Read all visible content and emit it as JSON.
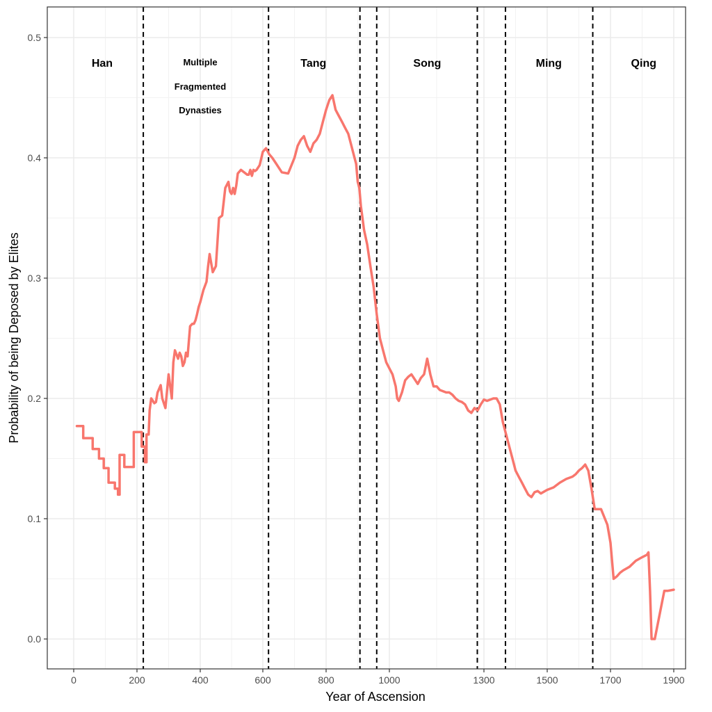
{
  "chart_data": {
    "type": "line",
    "title": "",
    "xlabel": "Year of Ascension",
    "ylabel": "Probability of being Deposed by Elites",
    "xlim": [
      -80,
      2000
    ],
    "ylim": [
      -0.025,
      0.525
    ],
    "x_ticks": [
      0,
      200,
      400,
      600,
      800,
      1000,
      1300,
      1500,
      1700,
      1900
    ],
    "x_tick_labels": [
      "0",
      "200",
      "400",
      "600",
      "800",
      "1000",
      "1300",
      "1500",
      "1700",
      "1900"
    ],
    "y_ticks": [
      0.0,
      0.1,
      0.2,
      0.3,
      0.4,
      0.5
    ],
    "y_tick_labels": [
      "0.0",
      "0.1",
      "0.2",
      "0.3",
      "0.4",
      "0.5"
    ],
    "grid": true,
    "line_color": "#F8766D",
    "divider_color": "#000000",
    "dividers": [
      220,
      618,
      907,
      960,
      1279,
      1368,
      1644
    ],
    "period_labels": [
      {
        "text": "Han",
        "x": 90,
        "y": 0.476
      },
      {
        "text": "Multiple",
        "x": 400,
        "y": 0.476
      },
      {
        "text": "Fragmented",
        "x": 400,
        "y": 0.456
      },
      {
        "text": "Dynasties",
        "x": 400,
        "y": 0.436
      },
      {
        "text": "Tang",
        "x": 760,
        "y": 0.476
      },
      {
        "text": "Song",
        "x": 1120,
        "y": 0.476
      },
      {
        "text": "Ming",
        "x": 1505,
        "y": 0.476
      },
      {
        "text": "Qing",
        "x": 1805,
        "y": 0.476
      }
    ],
    "series": [
      {
        "x": [
          10,
          30,
          30,
          60,
          60,
          80,
          80,
          95,
          95,
          110,
          110,
          130,
          130,
          140,
          140,
          145,
          145,
          160,
          160,
          190,
          190,
          215,
          215,
          225,
          225,
          230,
          230,
          237,
          240,
          245,
          250,
          255,
          260,
          265,
          275,
          280,
          290,
          300,
          305,
          310,
          315,
          320,
          330,
          335,
          340,
          345,
          350,
          355,
          360,
          368,
          375,
          380,
          385,
          390,
          395,
          400,
          410,
          420,
          425,
          430,
          440,
          450,
          460,
          470,
          480,
          490,
          495,
          500,
          505,
          510,
          515,
          520,
          530,
          540,
          550,
          555,
          560,
          565,
          570,
          575,
          580,
          590,
          600,
          610,
          620,
          630,
          640,
          660,
          680,
          700,
          710,
          720,
          730,
          740,
          750,
          760,
          770,
          780,
          790,
          800,
          810,
          820,
          830,
          840,
          850,
          860,
          870,
          880,
          890,
          895,
          900,
          905,
          910,
          915,
          920,
          930,
          940,
          950,
          960,
          970,
          980,
          985,
          990,
          1000,
          1010,
          1020,
          1025,
          1030,
          1040,
          1050,
          1060,
          1070,
          1080,
          1090,
          1100,
          1110,
          1120,
          1130,
          1140,
          1150,
          1160,
          1170,
          1180,
          1190,
          1200,
          1210,
          1220,
          1230,
          1240,
          1250,
          1260,
          1270,
          1280,
          1290,
          1300,
          1310,
          1320,
          1330,
          1340,
          1350,
          1360,
          1370,
          1380,
          1390,
          1400,
          1410,
          1420,
          1430,
          1440,
          1450,
          1460,
          1470,
          1480,
          1500,
          1520,
          1540,
          1560,
          1580,
          1590,
          1600,
          1610,
          1620,
          1630,
          1640,
          1650,
          1660,
          1670,
          1690,
          1700,
          1710,
          1720,
          1730,
          1740,
          1760,
          1780,
          1800,
          1815,
          1820,
          1825,
          1830,
          1835,
          1840,
          1870,
          1880,
          1900
        ],
        "y": [
          0.177,
          0.177,
          0.167,
          0.167,
          0.158,
          0.158,
          0.15,
          0.15,
          0.142,
          0.142,
          0.13,
          0.13,
          0.125,
          0.125,
          0.12,
          0.12,
          0.153,
          0.153,
          0.143,
          0.143,
          0.172,
          0.172,
          0.16,
          0.16,
          0.147,
          0.147,
          0.17,
          0.17,
          0.19,
          0.2,
          0.198,
          0.196,
          0.197,
          0.205,
          0.211,
          0.2,
          0.192,
          0.22,
          0.21,
          0.2,
          0.23,
          0.24,
          0.233,
          0.238,
          0.235,
          0.227,
          0.23,
          0.238,
          0.235,
          0.26,
          0.262,
          0.262,
          0.265,
          0.27,
          0.276,
          0.28,
          0.29,
          0.297,
          0.31,
          0.32,
          0.305,
          0.31,
          0.35,
          0.352,
          0.375,
          0.38,
          0.372,
          0.37,
          0.375,
          0.37,
          0.377,
          0.387,
          0.39,
          0.388,
          0.386,
          0.386,
          0.39,
          0.385,
          0.39,
          0.389,
          0.39,
          0.394,
          0.405,
          0.408,
          0.403,
          0.4,
          0.396,
          0.388,
          0.387,
          0.4,
          0.41,
          0.415,
          0.418,
          0.41,
          0.405,
          0.412,
          0.415,
          0.42,
          0.43,
          0.44,
          0.448,
          0.452,
          0.44,
          0.435,
          0.43,
          0.425,
          0.42,
          0.41,
          0.4,
          0.395,
          0.38,
          0.375,
          0.36,
          0.35,
          0.34,
          0.328,
          0.31,
          0.293,
          0.27,
          0.25,
          0.24,
          0.235,
          0.23,
          0.225,
          0.22,
          0.21,
          0.2,
          0.198,
          0.205,
          0.215,
          0.218,
          0.22,
          0.216,
          0.212,
          0.217,
          0.22,
          0.233,
          0.22,
          0.21,
          0.21,
          0.207,
          0.206,
          0.205,
          0.205,
          0.203,
          0.2,
          0.198,
          0.197,
          0.195,
          0.19,
          0.188,
          0.192,
          0.19,
          0.195,
          0.199,
          0.198,
          0.199,
          0.2,
          0.2,
          0.195,
          0.18,
          0.17,
          0.16,
          0.15,
          0.14,
          0.135,
          0.13,
          0.125,
          0.12,
          0.118,
          0.122,
          0.123,
          0.121,
          0.124,
          0.126,
          0.13,
          0.133,
          0.135,
          0.137,
          0.14,
          0.142,
          0.145,
          0.14,
          0.125,
          0.108,
          0.108,
          0.108,
          0.095,
          0.08,
          0.05,
          0.052,
          0.055,
          0.057,
          0.06,
          0.065,
          0.068,
          0.07,
          0.072,
          0.04,
          0.0,
          0.0,
          0.0,
          0.04,
          0.04,
          0.041
        ]
      }
    ]
  }
}
